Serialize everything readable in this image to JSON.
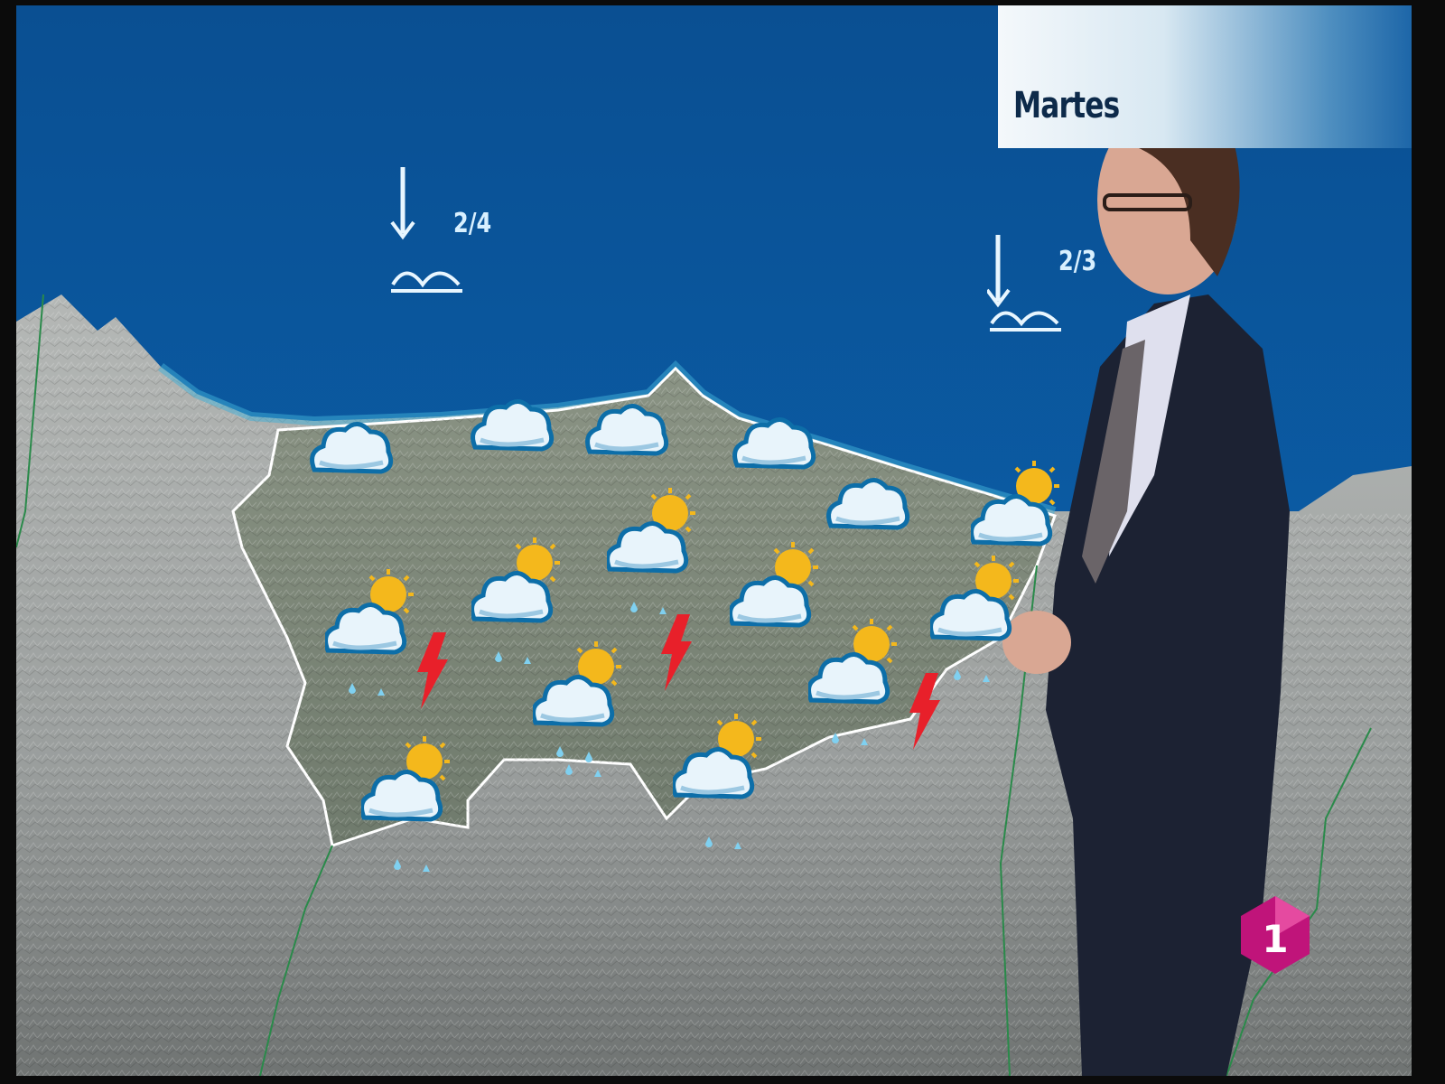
{
  "header": {
    "day_label": "Martes"
  },
  "sea": {
    "waves": [
      {
        "label": "2/4",
        "direction": "arrow-down-icon",
        "icon": "waves-icon"
      },
      {
        "label": "2/3",
        "direction": "arrow-down-icon",
        "icon": "waves-icon"
      }
    ]
  },
  "forecast_icons": [
    "cloud-icon",
    "cloud-icon",
    "cloud-icon",
    "cloud-icon",
    "cloud-icon",
    "sun-cloud-rain-icon",
    "lightning-icon"
  ],
  "colors": {
    "sea": "#0b5aa0",
    "land": "#9ea4a2",
    "region": "#7f8b7d",
    "lightning": "#e8202a",
    "title_text": "#0d2a4a"
  },
  "logo": {
    "channel": "1"
  }
}
